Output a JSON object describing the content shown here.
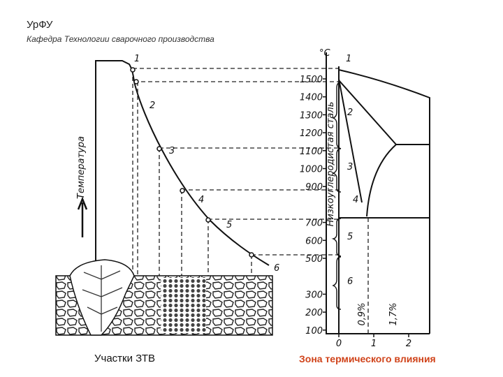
{
  "header": {
    "title": "УрФУ",
    "subtitle": "Кафедра Технологии сварочного производства"
  },
  "left_diagram": {
    "axis_label": "Температура",
    "point_labels": [
      "1",
      "2",
      "3",
      "4",
      "5",
      "6"
    ],
    "caption": "Участки ЗТВ"
  },
  "right_diagram": {
    "unit": "°C",
    "temperature_ticks": [
      1500,
      1400,
      1300,
      1200,
      1100,
      1000,
      900,
      700,
      600,
      500,
      300,
      200,
      100
    ],
    "zone_labels": [
      "1",
      "2",
      "3",
      "4",
      "5",
      "6"
    ],
    "steel_label": "Низкоуглеродистая сталь",
    "carbon_labels": [
      "0,9%",
      "1,7%"
    ],
    "x_ticks": [
      0,
      1,
      2
    ],
    "caption": "Зона термического влияния"
  }
}
